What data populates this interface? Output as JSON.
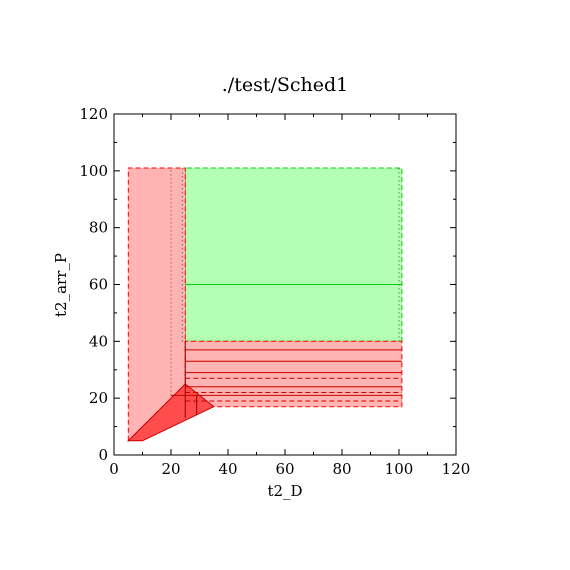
{
  "chart_data": {
    "type": "area",
    "title": "./test/Sched1",
    "xlabel": "t2_D",
    "ylabel": "t2_arr_P",
    "xlim": [
      0,
      120
    ],
    "ylim": [
      0,
      120
    ],
    "xticks": [
      "0",
      "20",
      "40",
      "60",
      "80",
      "100",
      "120"
    ],
    "yticks": [
      "0",
      "20",
      "40",
      "60",
      "80",
      "100",
      "120"
    ],
    "grid": false,
    "colors": {
      "green_fill": "#b3ffb3",
      "green_line": "#00cc00",
      "pink_fill": "#ffb3b3",
      "red_line": "#ff0000",
      "red_fill": "#ff4d4d",
      "dark_line": "#990000"
    },
    "regions": [
      {
        "name": "green-region",
        "points": [
          [
            25,
            40
          ],
          [
            101,
            40
          ],
          [
            101,
            101
          ],
          [
            25,
            101
          ]
        ],
        "fill": "#b3ffb3",
        "stroke": "#00cc00",
        "dash": true
      },
      {
        "name": "pink-vertical-region",
        "points": [
          [
            5,
            5
          ],
          [
            5,
            101
          ],
          [
            25,
            101
          ],
          [
            25,
            25
          ]
        ],
        "fill": "#ffb3b3",
        "stroke": "#ff0000",
        "dash": true
      },
      {
        "name": "pink-horizontal-region",
        "points": [
          [
            25,
            17
          ],
          [
            101,
            17
          ],
          [
            101,
            40
          ],
          [
            25,
            40
          ]
        ],
        "fill": "#ffb3b3",
        "stroke": "#ff0000",
        "dash": true
      },
      {
        "name": "red-triangle-region",
        "points": [
          [
            5,
            5
          ],
          [
            10,
            5
          ],
          [
            35,
            17
          ],
          [
            25,
            25
          ]
        ],
        "fill": "#ff4d4d",
        "stroke": "#cc0000",
        "dash": false
      }
    ],
    "lines": [
      {
        "name": "green-line-60",
        "points": [
          [
            25,
            60
          ],
          [
            101,
            60
          ]
        ],
        "stroke": "#00cc00",
        "dash": false
      },
      {
        "name": "red-line-37",
        "points": [
          [
            25,
            37
          ],
          [
            101,
            37
          ]
        ],
        "stroke": "#cc0000",
        "dash": false
      },
      {
        "name": "red-line-33",
        "points": [
          [
            25,
            33
          ],
          [
            101,
            33
          ]
        ],
        "stroke": "#cc0000",
        "dash": false
      },
      {
        "name": "red-line-29",
        "points": [
          [
            25,
            29
          ],
          [
            101,
            29
          ]
        ],
        "stroke": "#cc0000",
        "dash": false
      },
      {
        "name": "red-line-27",
        "points": [
          [
            25,
            27
          ],
          [
            101,
            27
          ]
        ],
        "stroke": "#cc0000",
        "dash": true
      },
      {
        "name": "red-line-24",
        "points": [
          [
            25,
            24
          ],
          [
            101,
            24
          ]
        ],
        "stroke": "#cc0000",
        "dash": false
      },
      {
        "name": "red-line-22",
        "points": [
          [
            25,
            22
          ],
          [
            101,
            22
          ]
        ],
        "stroke": "#cc0000",
        "dash": true
      },
      {
        "name": "red-line-21",
        "points": [
          [
            20,
            21
          ],
          [
            101,
            21
          ]
        ],
        "stroke": "#cc0000",
        "dash": false
      },
      {
        "name": "red-line-19",
        "points": [
          [
            25,
            19
          ],
          [
            101,
            19
          ]
        ],
        "stroke": "#cc0000",
        "dash": true
      },
      {
        "name": "red-vertical-25",
        "points": [
          [
            25,
            13
          ],
          [
            25,
            40
          ]
        ],
        "stroke": "#990000",
        "dash": false
      },
      {
        "name": "red-vertical-29",
        "points": [
          [
            29,
            14
          ],
          [
            29,
            21
          ]
        ],
        "stroke": "#990000",
        "dash": false
      },
      {
        "name": "dotted-vertical-20",
        "points": [
          [
            20,
            21
          ],
          [
            20,
            101
          ]
        ],
        "stroke": "#444444",
        "dash": "dot"
      },
      {
        "name": "dotted-vertical-24",
        "points": [
          [
            24,
            40
          ],
          [
            24,
            101
          ]
        ],
        "stroke": "#444444",
        "dash": "dot"
      },
      {
        "name": "dotted-vertical-100",
        "points": [
          [
            100,
            40
          ],
          [
            100,
            101
          ]
        ],
        "stroke": "#444444",
        "dash": "dot"
      }
    ]
  }
}
